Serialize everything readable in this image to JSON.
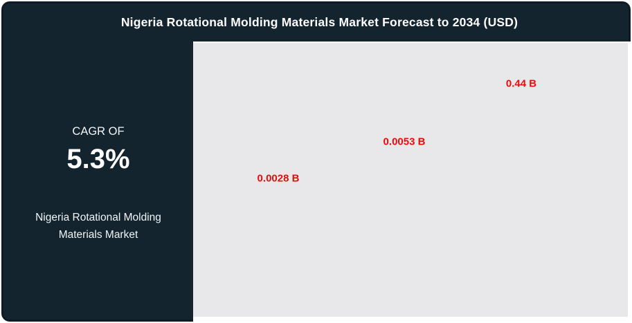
{
  "title": "Nigeria Rotational Molding Materials Market Forecast to 2034 (USD)",
  "left_panel": {
    "cagr_label": "CAGR OF",
    "cagr_value": "5.3%",
    "market_name_line1": "Nigeria Rotational Molding",
    "market_name_line2": "Materials Market"
  },
  "chart_data": {
    "type": "bar",
    "title": "Nigeria Rotational Molding Materials Market Forecast to 2034 (USD)",
    "unit": "USD Billions",
    "values": [
      0.0028,
      0.0053,
      0.44
    ],
    "value_labels": [
      "0.0028 B",
      "0.0053 B",
      "0.44 B"
    ],
    "label_color": "#e60c0d",
    "plot_background": "#e8e8ea",
    "grid": "off",
    "legend": "none",
    "axes_visible": false,
    "notes": "Only red value labels are rendered in the plot area; no bars, axes, tick labels or gridlines are visible."
  },
  "colors": {
    "frame_fill": "#13242f",
    "frame_border": "#0c1b25",
    "plot_background": "#e8e8ea",
    "card_background": "#ffffff",
    "title_text": "#ffffff",
    "accent_red": "#e60c0d"
  }
}
